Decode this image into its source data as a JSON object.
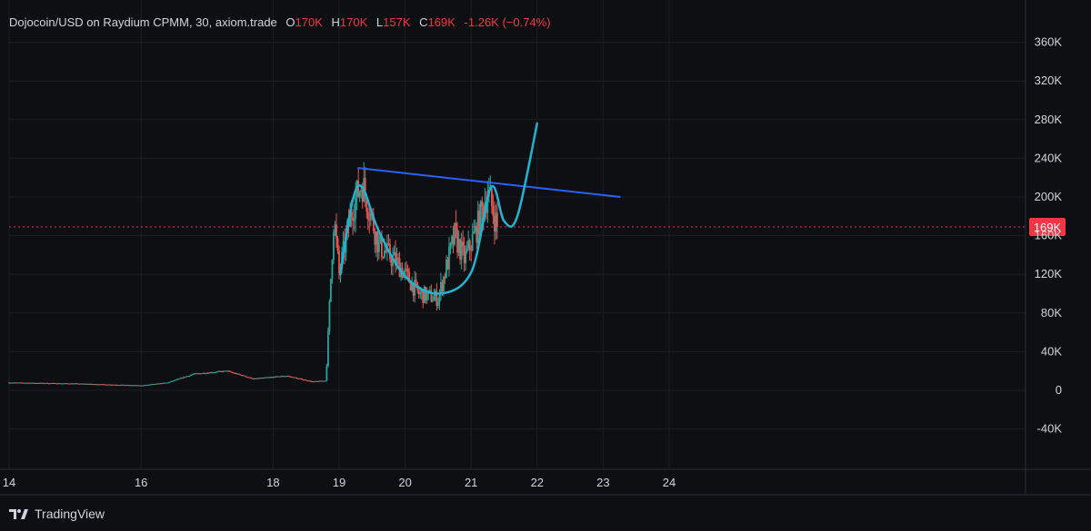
{
  "header": {
    "symbol": "Dojocoin/USD on Raydium CPMM, 30, axiom.trade",
    "open_label": "O",
    "open": "170K",
    "high_label": "H",
    "high": "170K",
    "low_label": "L",
    "low": "157K",
    "close_label": "C",
    "close": "169K",
    "change": "-1.26K (−0.74%)"
  },
  "price_badge": "169K",
  "footer": {
    "brand": "TradingView",
    "logo_icon": "tradingview-logo-icon"
  },
  "colors": {
    "up": "#26a69a",
    "down": "#ef5350",
    "trend": "#2962ff",
    "curve": "#22b3d1",
    "price_line": "#f23645",
    "badge": "#f23645"
  },
  "chart_data": {
    "type": "candlestick",
    "title": "Dojocoin/USD on Raydium CPMM, 30, axiom.trade",
    "x_ticks": [
      "14",
      "16",
      "18",
      "19",
      "20",
      "21",
      "22",
      "23",
      "24"
    ],
    "y_ticks": [
      "360K",
      "320K",
      "280K",
      "240K",
      "200K",
      "160K",
      "120K",
      "80K",
      "40K",
      "0",
      "-40K"
    ],
    "ylim": [
      -55000,
      375000
    ],
    "last_price": 169000,
    "close_path_approx": [
      {
        "day": 14.0,
        "close": 8000
      },
      {
        "day": 15.0,
        "close": 7000
      },
      {
        "day": 16.0,
        "close": 5000
      },
      {
        "day": 16.4,
        "close": 8000
      },
      {
        "day": 16.8,
        "close": 17000
      },
      {
        "day": 17.3,
        "close": 20000
      },
      {
        "day": 17.7,
        "close": 12000
      },
      {
        "day": 18.2,
        "close": 15000
      },
      {
        "day": 18.6,
        "close": 9000
      },
      {
        "day": 18.8,
        "close": 10000
      },
      {
        "day": 18.92,
        "close": 180000
      },
      {
        "day": 19.0,
        "close": 120000
      },
      {
        "day": 19.2,
        "close": 190000
      },
      {
        "day": 19.35,
        "close": 215000
      },
      {
        "day": 19.6,
        "close": 150000
      },
      {
        "day": 19.9,
        "close": 130000
      },
      {
        "day": 20.2,
        "close": 100000
      },
      {
        "day": 20.5,
        "close": 95000
      },
      {
        "day": 20.75,
        "close": 160000
      },
      {
        "day": 20.9,
        "close": 135000
      },
      {
        "day": 21.1,
        "close": 170000
      },
      {
        "day": 21.25,
        "close": 205000
      },
      {
        "day": 21.4,
        "close": 169000
      }
    ],
    "trend_line": [
      {
        "day": 19.28,
        "value": 230000
      },
      {
        "day": 23.26,
        "value": 200000
      }
    ],
    "projection_curve_approx": [
      {
        "day": 19.02,
        "value": 120000
      },
      {
        "day": 19.2,
        "value": 195000
      },
      {
        "day": 19.35,
        "value": 210000
      },
      {
        "day": 19.6,
        "value": 165000
      },
      {
        "day": 20.0,
        "value": 118000
      },
      {
        "day": 20.5,
        "value": 100000
      },
      {
        "day": 21.0,
        "value": 122000
      },
      {
        "day": 21.3,
        "value": 210000
      },
      {
        "day": 21.5,
        "value": 175000
      },
      {
        "day": 21.7,
        "value": 180000
      },
      {
        "day": 22.0,
        "value": 276000
      }
    ],
    "grid": true,
    "price_line": "dotted"
  }
}
